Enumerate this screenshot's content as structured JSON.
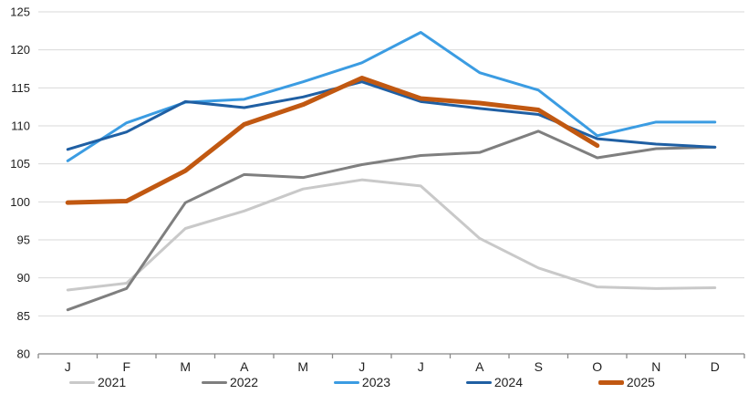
{
  "chart_data": {
    "type": "line",
    "title": "",
    "xlabel": "",
    "ylabel": "",
    "grid": true,
    "categories": [
      "J",
      "F",
      "M",
      "A",
      "M",
      "J",
      "J",
      "A",
      "S",
      "O",
      "N",
      "D"
    ],
    "y_axis": {
      "min": 80,
      "max": 125,
      "step": 5,
      "tick_labels": [
        "80",
        "85",
        "90",
        "95",
        "100",
        "105",
        "110",
        "115",
        "120",
        "125"
      ]
    },
    "legend": {
      "position": "bottom",
      "entries": [
        "2021",
        "2022",
        "2023",
        "2024",
        "2025"
      ]
    },
    "series": [
      {
        "name": "2021",
        "color": "#c9c9c9",
        "stroke_width": 3,
        "values": [
          88.4,
          89.3,
          96.5,
          98.8,
          101.7,
          102.9,
          102.1,
          95.2,
          91.3,
          88.8,
          88.6,
          88.7
        ]
      },
      {
        "name": "2022",
        "color": "#7f7f7f",
        "stroke_width": 3,
        "values": [
          85.8,
          88.6,
          99.9,
          103.6,
          103.2,
          104.9,
          106.1,
          106.5,
          109.3,
          105.8,
          107.0,
          107.2
        ]
      },
      {
        "name": "2023",
        "color": "#3b9ce2",
        "stroke_width": 3,
        "values": [
          105.4,
          110.4,
          113.1,
          113.5,
          115.8,
          118.3,
          122.3,
          117.0,
          114.7,
          108.7,
          110.5,
          110.5
        ]
      },
      {
        "name": "2024",
        "color": "#1f5fa3",
        "stroke_width": 3,
        "values": [
          106.9,
          109.2,
          113.2,
          112.4,
          113.8,
          115.8,
          113.2,
          112.3,
          111.5,
          108.3,
          107.6,
          107.2
        ]
      },
      {
        "name": "2025",
        "color": "#c15811",
        "stroke_width": 5,
        "values": [
          99.9,
          100.1,
          104.1,
          110.2,
          112.8,
          116.3,
          113.6,
          113.0,
          112.1,
          107.4,
          null,
          null
        ]
      }
    ]
  },
  "colors": {
    "background": "#ffffff",
    "gridline": "#d9d9d9",
    "axis": "#898989",
    "text": "#212121"
  }
}
